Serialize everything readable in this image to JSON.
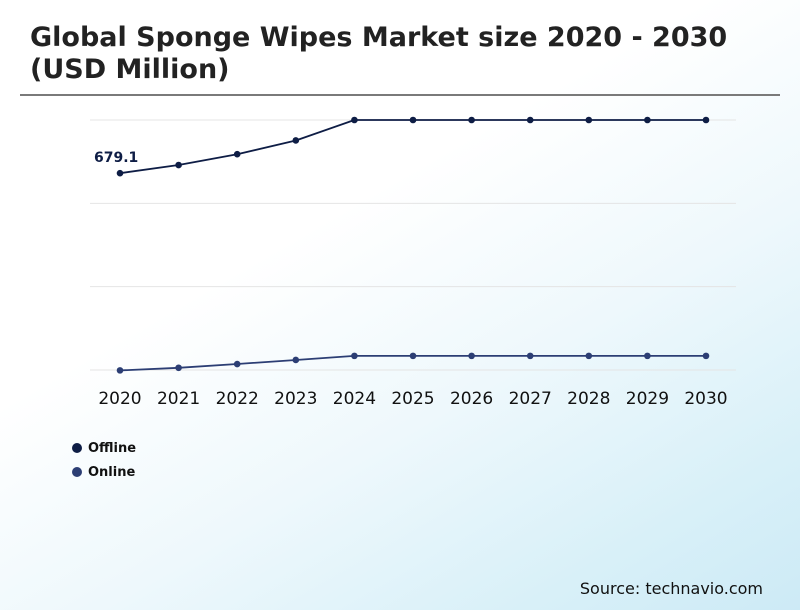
{
  "chart_data": {
    "type": "line",
    "title": "Global Sponge Wipes Market size 2020 - 2030\n(USD Million)",
    "x": [
      "2020",
      "2021",
      "2022",
      "2023",
      "2024",
      "2025",
      "2026",
      "2027",
      "2028",
      "2029",
      "2030"
    ],
    "series": [
      {
        "name": "Offline",
        "color": "#0e1d45",
        "values": [
          679.1,
          701,
          730,
          767,
          822,
          822,
          822,
          822,
          822,
          822,
          822
        ]
      },
      {
        "name": "Online",
        "color": "#2c3e74",
        "values": [
          149,
          156,
          166,
          177,
          188,
          188,
          188,
          188,
          188,
          188,
          188
        ]
      }
    ],
    "data_labels": [
      {
        "series": 0,
        "index": 0,
        "text": "679.1"
      }
    ],
    "ylim": [
      150,
      822
    ],
    "grid": true,
    "legend_position": "bottom-left",
    "source": "Source: technavio.com"
  }
}
